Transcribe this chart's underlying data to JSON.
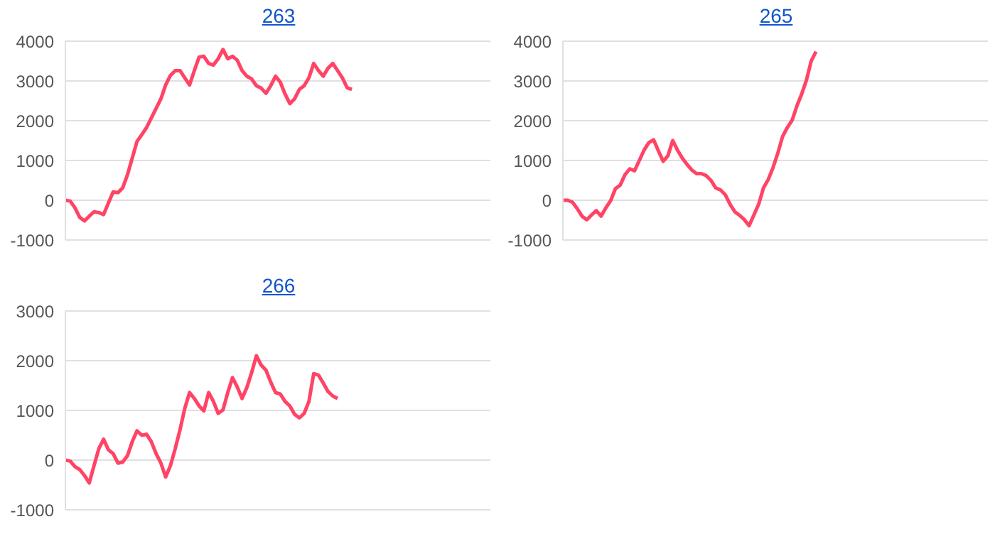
{
  "chart_data": [
    {
      "type": "line",
      "title": "263",
      "categories": [
        null,
        null,
        null,
        null,
        null,
        null,
        null,
        null,
        null,
        null,
        null,
        null,
        null,
        null,
        null,
        null,
        null,
        null,
        null,
        null,
        null,
        null,
        null,
        null,
        null,
        null,
        null,
        null,
        null,
        null,
        null,
        null,
        null,
        null,
        null,
        null,
        null,
        null,
        null,
        null,
        null,
        null,
        null,
        null,
        null,
        null,
        null,
        null,
        null,
        null,
        null,
        null,
        null,
        null,
        null,
        null,
        null,
        null,
        null,
        null,
        null,
        null,
        null,
        null,
        null,
        null,
        null,
        null,
        null,
        null,
        null,
        null,
        null,
        null,
        null,
        null,
        null,
        null,
        null,
        null,
        null,
        null,
        null,
        null,
        null,
        null,
        null,
        null,
        null,
        null
      ],
      "ylim": [
        -1000,
        4000
      ],
      "yticks": [
        -1000,
        0,
        1000,
        2000,
        3000,
        4000
      ],
      "grid": "y",
      "tick_labels": "y",
      "marker": "none",
      "series": [
        {
          "color": "#ff4466",
          "values": [
            0,
            -20,
            -190,
            -430,
            -520,
            -400,
            -290,
            -310,
            -360,
            -70,
            210,
            190,
            310,
            640,
            1060,
            1480,
            1650,
            1830,
            2070,
            2310,
            2550,
            2900,
            3140,
            3260,
            3260,
            3080,
            2900,
            3260,
            3600,
            3620,
            3440,
            3400,
            3560,
            3790,
            3560,
            3620,
            3520,
            3260,
            3120,
            3050,
            2880,
            2820,
            2690,
            2880,
            3120,
            2970,
            2670,
            2430,
            2550,
            2790,
            2880,
            3080,
            3440,
            3260,
            3120,
            3320,
            3440,
            3260,
            3080,
            2830,
            2790,
            null,
            null,
            null,
            null,
            null,
            null,
            null,
            null,
            null,
            null,
            null,
            null,
            null,
            null,
            null,
            null,
            null,
            null,
            null,
            null,
            null,
            null,
            null,
            null,
            null,
            null,
            null,
            null,
            null
          ]
        }
      ]
    },
    {
      "type": "line",
      "title": "265",
      "categories": [
        null,
        null,
        null,
        null,
        null,
        null,
        null,
        null,
        null,
        null,
        null,
        null,
        null,
        null,
        null,
        null,
        null,
        null,
        null,
        null,
        null,
        null,
        null,
        null,
        null,
        null,
        null,
        null,
        null,
        null,
        null,
        null,
        null,
        null,
        null,
        null,
        null,
        null,
        null,
        null,
        null,
        null,
        null,
        null,
        null,
        null,
        null,
        null,
        null,
        null,
        null,
        null,
        null,
        null,
        null,
        null,
        null,
        null,
        null,
        null,
        null,
        null,
        null,
        null,
        null,
        null,
        null,
        null,
        null,
        null,
        null,
        null,
        null,
        null,
        null,
        null,
        null,
        null,
        null,
        null,
        null,
        null,
        null,
        null,
        null,
        null,
        null,
        null,
        null,
        null
      ],
      "ylim": [
        -1000,
        4000
      ],
      "yticks": [
        -1000,
        0,
        1000,
        2000,
        3000,
        4000
      ],
      "grid": "y",
      "tick_labels": "y",
      "marker": "none",
      "series": [
        {
          "color": "#ff4466",
          "values": [
            0,
            0,
            -50,
            -210,
            -400,
            -490,
            -370,
            -260,
            -400,
            -190,
            -10,
            290,
            380,
            640,
            790,
            740,
            1000,
            1260,
            1450,
            1520,
            1240,
            980,
            1120,
            1500,
            1260,
            1060,
            900,
            760,
            670,
            670,
            620,
            500,
            310,
            260,
            140,
            -100,
            -290,
            -380,
            -490,
            -640,
            -370,
            -100,
            310,
            520,
            820,
            1180,
            1600,
            1830,
            2010,
            2370,
            2670,
            3020,
            3500,
            3740,
            null,
            null,
            null,
            null,
            null,
            null,
            null,
            null,
            null,
            null,
            null,
            null,
            null,
            null,
            null,
            null,
            null,
            null,
            null,
            null,
            null,
            null,
            null,
            null,
            null,
            null,
            null,
            null,
            null,
            null,
            null,
            null,
            null,
            null,
            null,
            null
          ]
        }
      ]
    },
    {
      "type": "line",
      "title": "266",
      "categories": [
        null,
        null,
        null,
        null,
        null,
        null,
        null,
        null,
        null,
        null,
        null,
        null,
        null,
        null,
        null,
        null,
        null,
        null,
        null,
        null,
        null,
        null,
        null,
        null,
        null,
        null,
        null,
        null,
        null,
        null,
        null,
        null,
        null,
        null,
        null,
        null,
        null,
        null,
        null,
        null,
        null,
        null,
        null,
        null,
        null,
        null,
        null,
        null,
        null,
        null,
        null,
        null,
        null,
        null,
        null,
        null,
        null,
        null,
        null,
        null,
        null,
        null,
        null,
        null,
        null,
        null,
        null,
        null,
        null,
        null,
        null,
        null,
        null,
        null,
        null,
        null,
        null,
        null,
        null,
        null,
        null,
        null,
        null,
        null,
        null,
        null,
        null,
        null,
        null,
        null
      ],
      "ylim": [
        -1000,
        3000
      ],
      "yticks": [
        -1000,
        0,
        1000,
        2000,
        3000
      ],
      "grid": "y",
      "tick_labels": "y",
      "marker": "none",
      "series": [
        {
          "color": "#ff4466",
          "values": [
            0,
            -20,
            -130,
            -190,
            -310,
            -460,
            -110,
            230,
            420,
            210,
            130,
            -60,
            -40,
            90,
            370,
            590,
            500,
            520,
            370,
            130,
            -60,
            -340,
            -110,
            230,
            610,
            1040,
            1360,
            1240,
            1090,
            990,
            1360,
            1180,
            940,
            1010,
            1360,
            1660,
            1470,
            1240,
            1460,
            1760,
            2100,
            1910,
            1810,
            1570,
            1360,
            1330,
            1180,
            1090,
            920,
            850,
            940,
            1180,
            1740,
            1710,
            1550,
            1380,
            1290,
            1240,
            null,
            null,
            null,
            null,
            null,
            null,
            null,
            null,
            null,
            null,
            null,
            null,
            null,
            null,
            null,
            null,
            null,
            null,
            null,
            null,
            null,
            null,
            null,
            null,
            null,
            null,
            null,
            null,
            null,
            null,
            null,
            null
          ]
        }
      ]
    }
  ]
}
